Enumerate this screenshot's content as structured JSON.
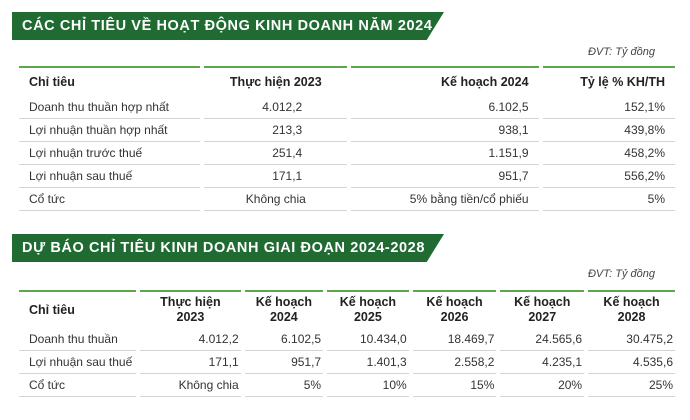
{
  "section1": {
    "title": "CÁC CHỈ TIÊU VỀ HOẠT ĐỘNG KINH DOANH NĂM 2024",
    "unit": "ĐVT: Tỷ đồng",
    "headers": [
      "Chỉ tiêu",
      "Thực hiện 2023",
      "Kế hoạch 2024",
      "Tỷ lệ % KH/TH"
    ],
    "rows": [
      [
        "Doanh thu thuần hợp nhất",
        "4.012,2",
        "6.102,5",
        "152,1%"
      ],
      [
        "Lợi nhuận thuần hợp nhất",
        "213,3",
        "938,1",
        "439,8%"
      ],
      [
        "Lợi nhuận trước thuế",
        "251,4",
        "1.151,9",
        "458,2%"
      ],
      [
        "Lợi nhuận sau thuế",
        "171,1",
        "951,7",
        "556,2%"
      ],
      [
        "Cổ tức",
        "Không chia",
        "5% bằng tiền/cổ phiếu",
        "5%"
      ]
    ]
  },
  "section2": {
    "title": "DỰ BÁO CHỈ TIÊU KINH DOANH GIAI ĐOẠN 2024-2028",
    "unit": "ĐVT: Tỷ đồng",
    "headers": [
      {
        "l1": "Chỉ tiêu",
        "l2": ""
      },
      {
        "l1": "Thực hiện",
        "l2": "2023"
      },
      {
        "l1": "Kế hoạch",
        "l2": "2024"
      },
      {
        "l1": "Kế hoạch",
        "l2": "2025"
      },
      {
        "l1": "Kế hoạch",
        "l2": "2026"
      },
      {
        "l1": "Kế hoạch",
        "l2": "2027"
      },
      {
        "l1": "Kế hoạch",
        "l2": "2028"
      }
    ],
    "rows": [
      [
        "Doanh thu thuần",
        "4.012,2",
        "6.102,5",
        "10.434,0",
        "18.469,7",
        "24.565,6",
        "30.475,2"
      ],
      [
        "Lợi nhuận sau thuế",
        "171,1",
        "951,7",
        "1.401,3",
        "2.558,2",
        "4.235,1",
        "4.535,6"
      ],
      [
        "Cổ tức",
        "Không chia",
        "5%",
        "10%",
        "15%",
        "20%",
        "25%"
      ]
    ]
  },
  "colors": {
    "banner": "#1f6b32",
    "rule": "#5aa84a",
    "row_line": "#d3d3d3"
  }
}
